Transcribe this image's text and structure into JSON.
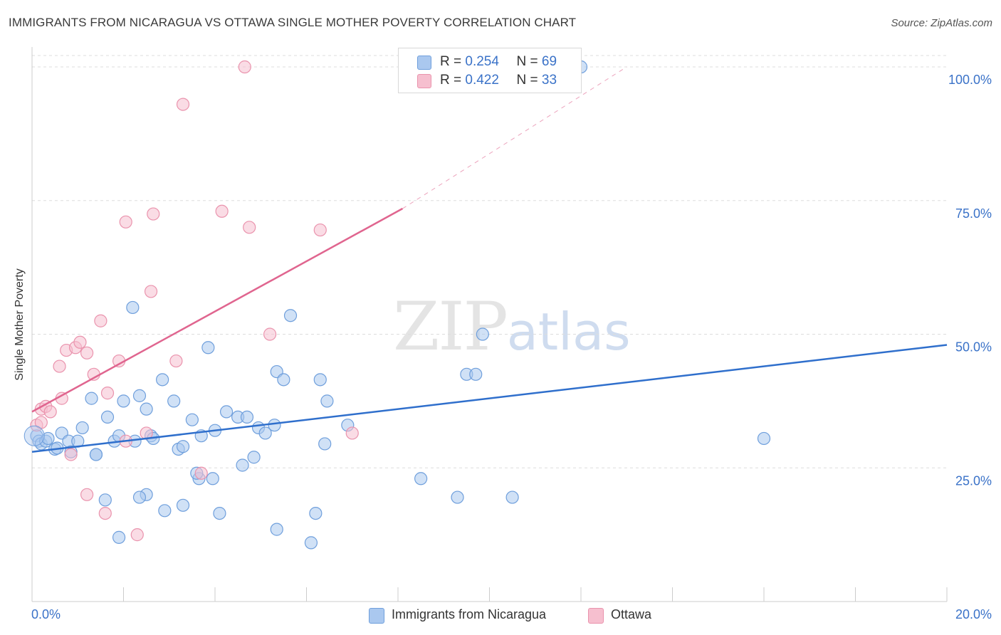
{
  "title": "IMMIGRANTS FROM NICARAGUA VS OTTAWA SINGLE MOTHER POVERTY CORRELATION CHART",
  "source": "Source: ZipAtlas.com",
  "watermark": {
    "zip": "ZIP",
    "atlas": "atlas"
  },
  "legend_top": {
    "r_label": "R =",
    "n_label": "N =",
    "rows": [
      {
        "r": "0.254",
        "n": "69"
      },
      {
        "r": "0.422",
        "n": "33"
      }
    ]
  },
  "legend_bottom": [
    {
      "label": "Immigrants from Nicaragua"
    },
    {
      "label": "Ottawa"
    }
  ],
  "colors": {
    "blue_fill": "#aac8ef",
    "blue_stroke": "#6f9fdc",
    "blue_line": "#2f6fcc",
    "pink_fill": "#f6bfcf",
    "pink_stroke": "#ea93ad",
    "pink_line": "#e0658f",
    "tick_text": "#3a72c8",
    "grid": "#dddddd"
  },
  "chart_data": {
    "type": "scatter",
    "title": "IMMIGRANTS FROM NICARAGUA VS OTTAWA SINGLE MOTHER POVERTY CORRELATION CHART",
    "xlabel": "",
    "ylabel": "Single Mother Poverty",
    "xlim": [
      0,
      20
    ],
    "ylim": [
      0,
      102
    ],
    "x_tick_labels": [
      "0.0%",
      "20.0%"
    ],
    "y_ticks": [
      25,
      50,
      75,
      100
    ],
    "y_tick_labels": [
      "25.0%",
      "50.0%",
      "75.0%",
      "100.0%"
    ],
    "grid": true,
    "legend_position": "top-center",
    "series": [
      {
        "name": "Immigrants from Nicaragua",
        "r": 0.254,
        "n": 69,
        "trend": {
          "x0": 0,
          "y0": 28.0,
          "x1": 20,
          "y1": 48.0
        },
        "points": [
          [
            0.1,
            31
          ],
          [
            0.15,
            30
          ],
          [
            0.2,
            29.5
          ],
          [
            0.3,
            30
          ],
          [
            0.35,
            30.5
          ],
          [
            0.5,
            28.5
          ],
          [
            0.55,
            28.7
          ],
          [
            0.65,
            31.5
          ],
          [
            0.8,
            30
          ],
          [
            0.85,
            28
          ],
          [
            1.0,
            30
          ],
          [
            1.1,
            32.5
          ],
          [
            1.3,
            38
          ],
          [
            1.4,
            27.5
          ],
          [
            1.65,
            34.5
          ],
          [
            1.8,
            30
          ],
          [
            1.9,
            31
          ],
          [
            2.0,
            37.5
          ],
          [
            2.2,
            55
          ],
          [
            2.25,
            30
          ],
          [
            2.35,
            38.5
          ],
          [
            2.5,
            36
          ],
          [
            2.6,
            31
          ],
          [
            2.65,
            30.5
          ],
          [
            2.85,
            41.5
          ],
          [
            3.1,
            37.5
          ],
          [
            3.2,
            28.5
          ],
          [
            3.3,
            29
          ],
          [
            3.5,
            34
          ],
          [
            3.7,
            31
          ],
          [
            3.85,
            47.5
          ],
          [
            4.0,
            32
          ],
          [
            4.25,
            35.5
          ],
          [
            4.5,
            34.5
          ],
          [
            4.7,
            34.5
          ],
          [
            4.95,
            32.5
          ],
          [
            5.1,
            31.5
          ],
          [
            5.3,
            33
          ],
          [
            5.65,
            53.5
          ],
          [
            6.3,
            41.5
          ],
          [
            6.45,
            37.5
          ],
          [
            6.4,
            29.5
          ],
          [
            6.9,
            33
          ],
          [
            9.5,
            42.5
          ],
          [
            9.7,
            42.5
          ],
          [
            9.85,
            50
          ],
          [
            12.0,
            100
          ],
          [
            16.0,
            30.5
          ],
          [
            1.4,
            27.5
          ],
          [
            1.6,
            19
          ],
          [
            2.5,
            20
          ],
          [
            2.9,
            17
          ],
          [
            3.3,
            18
          ],
          [
            3.65,
            23
          ],
          [
            3.95,
            23
          ],
          [
            4.1,
            16.5
          ],
          [
            4.6,
            25.5
          ],
          [
            4.85,
            27
          ],
          [
            5.35,
            13.5
          ],
          [
            6.1,
            11
          ],
          [
            6.2,
            16.5
          ],
          [
            8.5,
            23
          ],
          [
            9.3,
            19.5
          ],
          [
            10.5,
            19.5
          ],
          [
            1.9,
            12
          ],
          [
            2.35,
            19.5
          ],
          [
            3.6,
            24
          ],
          [
            5.35,
            43
          ],
          [
            5.5,
            41.5
          ]
        ]
      },
      {
        "name": "Ottawa",
        "r": 0.422,
        "n": 33,
        "trend": {
          "x0": 0,
          "y0": 35.5,
          "x1": 8.1,
          "y1": 73.5
        },
        "trend_extension": {
          "x0": 8.1,
          "y0": 73.5,
          "x1": 13.0,
          "y1": 100
        },
        "points": [
          [
            0.1,
            33
          ],
          [
            0.2,
            36
          ],
          [
            0.3,
            36.5
          ],
          [
            0.4,
            35.5
          ],
          [
            0.6,
            44
          ],
          [
            0.65,
            38
          ],
          [
            0.75,
            47
          ],
          [
            0.95,
            47.5
          ],
          [
            1.05,
            48.5
          ],
          [
            1.2,
            46.5
          ],
          [
            1.35,
            42.5
          ],
          [
            1.5,
            52.5
          ],
          [
            1.65,
            39
          ],
          [
            1.9,
            45
          ],
          [
            2.05,
            30
          ],
          [
            2.05,
            71
          ],
          [
            2.5,
            31.5
          ],
          [
            2.6,
            58
          ],
          [
            2.65,
            72.5
          ],
          [
            3.15,
            45
          ],
          [
            3.3,
            93
          ],
          [
            3.7,
            24
          ],
          [
            4.15,
            73
          ],
          [
            4.65,
            100
          ],
          [
            4.75,
            70
          ],
          [
            5.2,
            50
          ],
          [
            6.3,
            69.5
          ],
          [
            7.0,
            31.5
          ],
          [
            0.85,
            27.5
          ],
          [
            1.2,
            20
          ],
          [
            1.6,
            16.5
          ],
          [
            2.3,
            12.5
          ],
          [
            0.2,
            33.5
          ]
        ]
      }
    ]
  }
}
